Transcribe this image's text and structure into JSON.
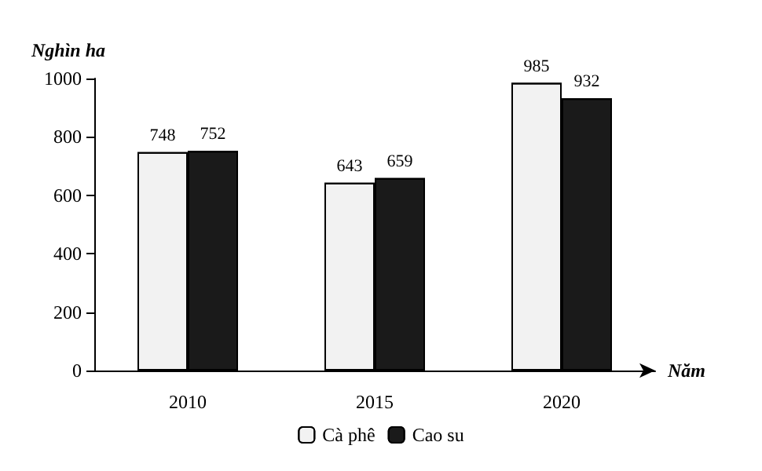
{
  "chart_data": {
    "type": "bar",
    "ylabel": "Nghìn ha",
    "xlabel": "Năm",
    "categories": [
      "2010",
      "2015",
      "2020"
    ],
    "series": [
      {
        "name": "Cà phê",
        "color": "#f2f2f2",
        "values": [
          748,
          643,
          985
        ]
      },
      {
        "name": "Cao su",
        "color": "#1a1a1a",
        "values": [
          752,
          659,
          932
        ]
      }
    ],
    "ylim": [
      0,
      1000
    ],
    "yticks": [
      0,
      200,
      400,
      600,
      800,
      1000
    ],
    "grid": false,
    "legend": "bottom",
    "data_labels": true
  }
}
